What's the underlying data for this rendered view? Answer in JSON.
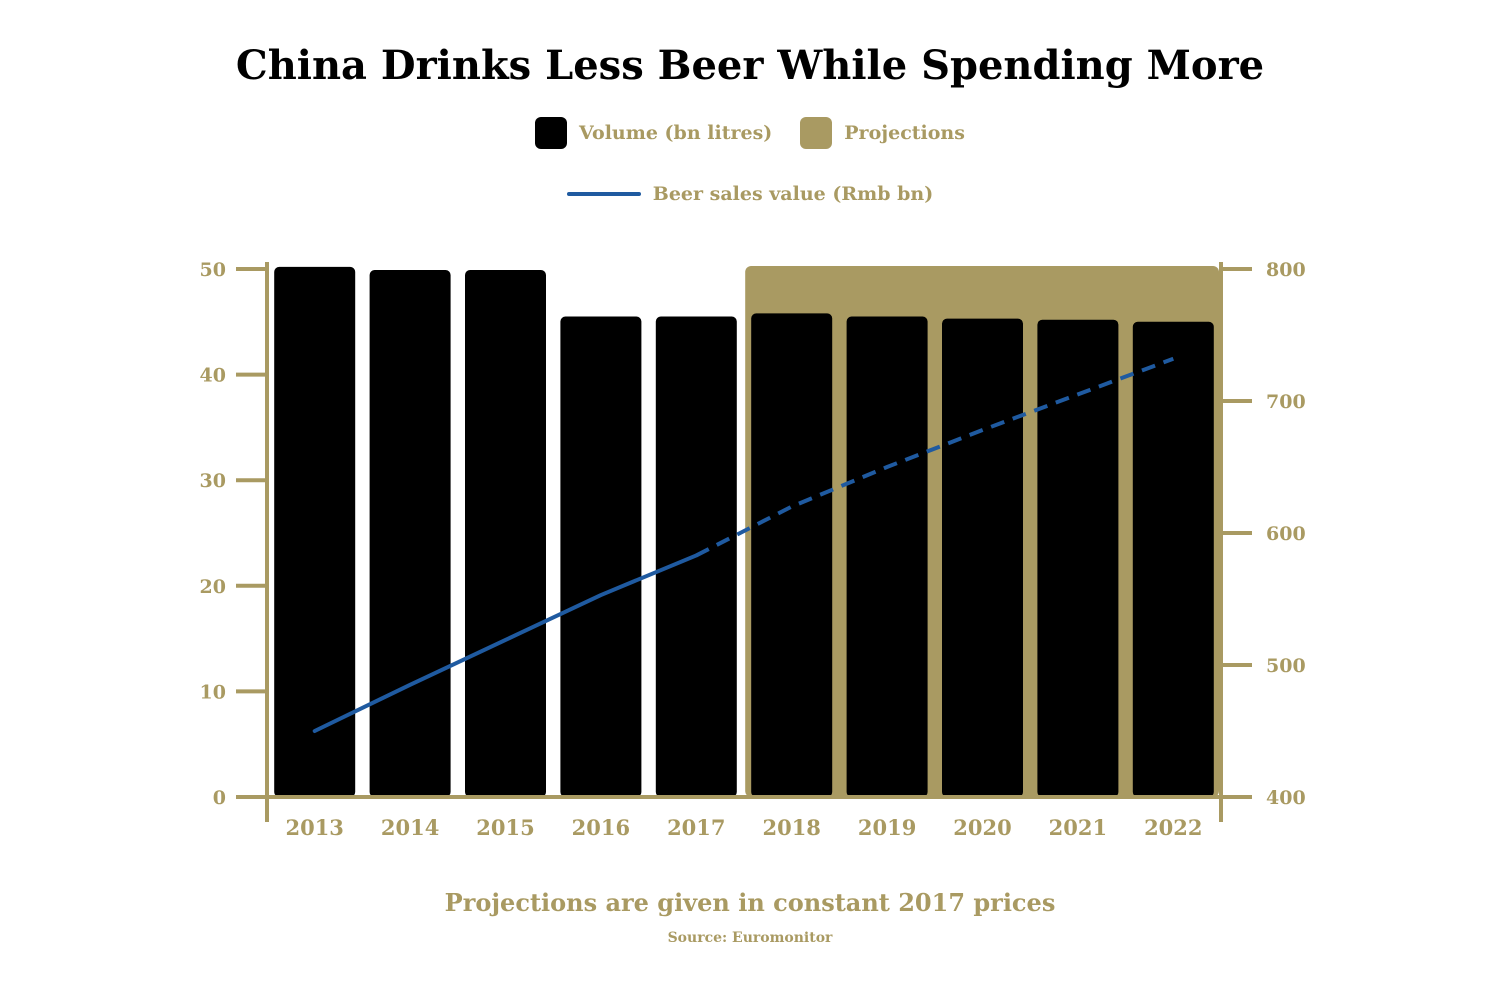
{
  "colors": {
    "accent_gold": "#a99a62",
    "bar_black": "#000000",
    "line_blue": "#1f5aa0"
  },
  "legend": {
    "volume_label": "Volume (bn litres)",
    "projections_label": "Projections",
    "sales_label": "Beer sales value (Rmb bn)"
  },
  "footnote": "Projections are given in constant 2017 prices",
  "source": "Source: Euromonitor",
  "chart_data": {
    "type": "bar",
    "title": "China Drinks Less Beer While Spending More",
    "categories": [
      "2013",
      "2014",
      "2015",
      "2016",
      "2017",
      "2018",
      "2019",
      "2020",
      "2021",
      "2022"
    ],
    "series": [
      {
        "name": "Volume (bn litres)",
        "type": "bar",
        "axis": "left",
        "values": [
          50.2,
          49.9,
          49.9,
          45.5,
          45.5,
          45.8,
          45.5,
          45.3,
          45.2,
          45.0
        ]
      },
      {
        "name": "Beer sales value (Rmb bn)",
        "type": "line",
        "axis": "right",
        "values": [
          450,
          485,
          519,
          553,
          583,
          620,
          650,
          678,
          705,
          732
        ],
        "projected_from": "2017"
      }
    ],
    "projection_range": [
      "2018",
      "2022"
    ],
    "y_left": {
      "min": 0,
      "max": 50,
      "ticks": [
        0,
        10,
        20,
        30,
        40,
        50
      ]
    },
    "y_right": {
      "min": 400,
      "max": 800,
      "ticks": [
        400,
        500,
        600,
        700,
        800
      ]
    },
    "legend_position": "top-center",
    "grid": false
  }
}
